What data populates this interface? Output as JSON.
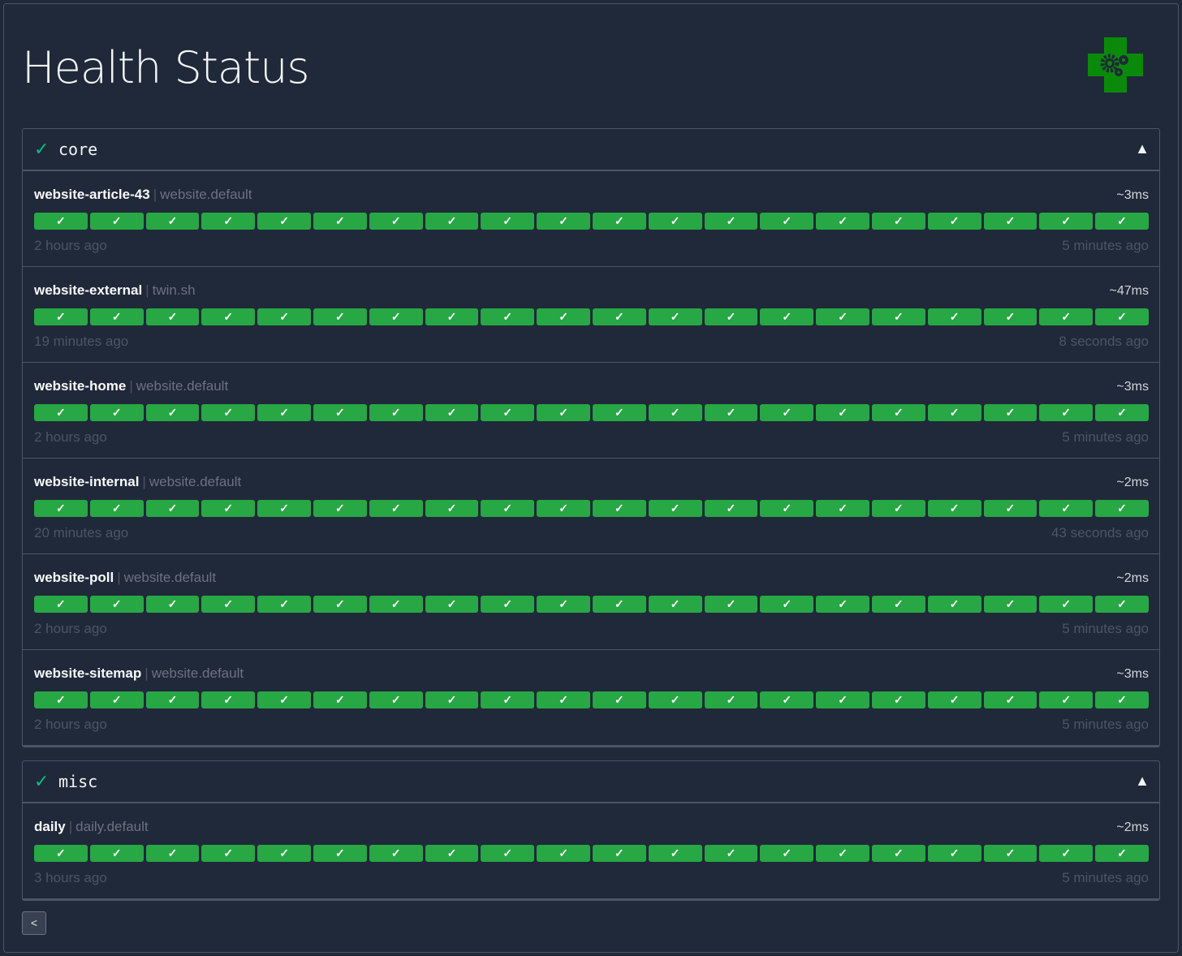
{
  "title": "Health Status",
  "colors": {
    "success": "#28a745",
    "group_check": "#10b981",
    "background": "#1f2937"
  },
  "logo": {
    "icon": "green-cross-gears-icon"
  },
  "groups": [
    {
      "name": "core",
      "status_icon": "✓",
      "toggle_icon": "▲",
      "endpoints": [
        {
          "name": "website-article-43",
          "group": "website.default",
          "response_time": "~3ms",
          "oldest": "2 hours ago",
          "newest": "5 minutes ago",
          "results": [
            "success",
            "success",
            "success",
            "success",
            "success",
            "success",
            "success",
            "success",
            "success",
            "success",
            "success",
            "success",
            "success",
            "success",
            "success",
            "success",
            "success",
            "success",
            "success",
            "success"
          ]
        },
        {
          "name": "website-external",
          "group": "twin.sh",
          "response_time": "~47ms",
          "oldest": "19 minutes ago",
          "newest": "8 seconds ago",
          "results": [
            "success",
            "success",
            "success",
            "success",
            "success",
            "success",
            "success",
            "success",
            "success",
            "success",
            "success",
            "success",
            "success",
            "success",
            "success",
            "success",
            "success",
            "success",
            "success",
            "success"
          ]
        },
        {
          "name": "website-home",
          "group": "website.default",
          "response_time": "~3ms",
          "oldest": "2 hours ago",
          "newest": "5 minutes ago",
          "results": [
            "success",
            "success",
            "success",
            "success",
            "success",
            "success",
            "success",
            "success",
            "success",
            "success",
            "success",
            "success",
            "success",
            "success",
            "success",
            "success",
            "success",
            "success",
            "success",
            "success"
          ]
        },
        {
          "name": "website-internal",
          "group": "website.default",
          "response_time": "~2ms",
          "oldest": "20 minutes ago",
          "newest": "43 seconds ago",
          "results": [
            "success",
            "success",
            "success",
            "success",
            "success",
            "success",
            "success",
            "success",
            "success",
            "success",
            "success",
            "success",
            "success",
            "success",
            "success",
            "success",
            "success",
            "success",
            "success",
            "success"
          ]
        },
        {
          "name": "website-poll",
          "group": "website.default",
          "response_time": "~2ms",
          "oldest": "2 hours ago",
          "newest": "5 minutes ago",
          "results": [
            "success",
            "success",
            "success",
            "success",
            "success",
            "success",
            "success",
            "success",
            "success",
            "success",
            "success",
            "success",
            "success",
            "success",
            "success",
            "success",
            "success",
            "success",
            "success",
            "success"
          ]
        },
        {
          "name": "website-sitemap",
          "group": "website.default",
          "response_time": "~3ms",
          "oldest": "2 hours ago",
          "newest": "5 minutes ago",
          "results": [
            "success",
            "success",
            "success",
            "success",
            "success",
            "success",
            "success",
            "success",
            "success",
            "success",
            "success",
            "success",
            "success",
            "success",
            "success",
            "success",
            "success",
            "success",
            "success",
            "success"
          ]
        }
      ]
    },
    {
      "name": "misc",
      "status_icon": "✓",
      "toggle_icon": "▲",
      "endpoints": [
        {
          "name": "daily",
          "group": "daily.default",
          "response_time": "~2ms",
          "oldest": "3 hours ago",
          "newest": "5 minutes ago",
          "results": [
            "success",
            "success",
            "success",
            "success",
            "success",
            "success",
            "success",
            "success",
            "success",
            "success",
            "success",
            "success",
            "success",
            "success",
            "success",
            "success",
            "success",
            "success",
            "success",
            "success"
          ]
        }
      ]
    }
  ],
  "pagination": {
    "previous_label": "<"
  }
}
